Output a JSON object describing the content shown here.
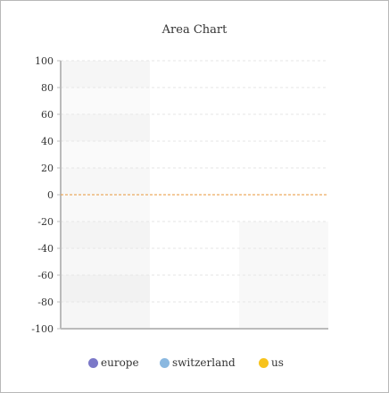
{
  "chart_data": {
    "type": "area",
    "title": "Area Chart",
    "xlabel": "",
    "ylabel": "",
    "ylim": [
      -100,
      100
    ],
    "yticks": [
      100,
      80,
      60,
      40,
      20,
      0,
      -20,
      -40,
      -60,
      -80,
      -100
    ],
    "grid": true,
    "baseline": 0,
    "baseline_color": "#e8973a",
    "legend_position": "bottom",
    "series": [
      {
        "name": "europe",
        "color": "#7b78c8",
        "values": []
      },
      {
        "name": "switzerland",
        "color": "#8ab8e0",
        "values": []
      },
      {
        "name": "us",
        "color": "#f7c31c",
        "values": []
      }
    ]
  }
}
